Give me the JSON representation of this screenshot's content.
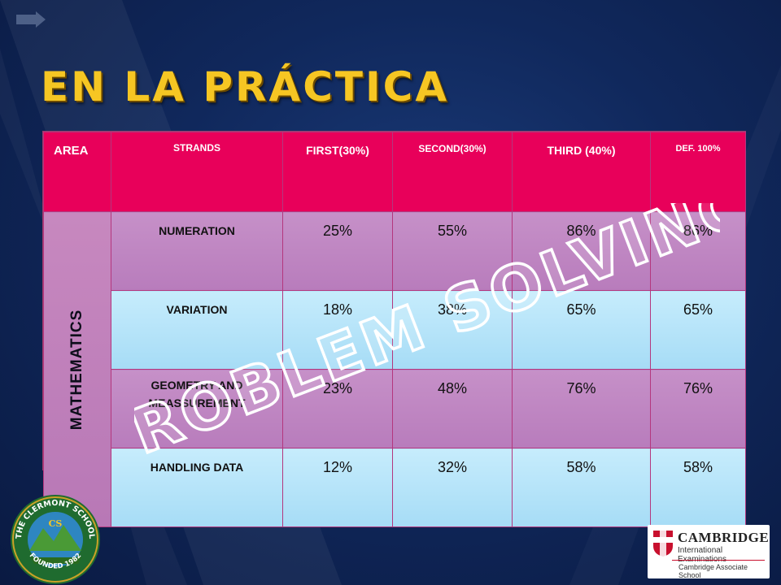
{
  "slide": {
    "title": "EN LA PRÁCTICA"
  },
  "table": {
    "headers": {
      "area": "AREA",
      "strands": "STRANDS",
      "first": "FIRST(30%)",
      "second": "SECOND(30%)",
      "third": "THIRD (40%)",
      "def": "DEF. 100%"
    },
    "area_label": "MATHEMATICS",
    "rows": [
      {
        "strand": "NUMERATION",
        "first": "25%",
        "second": "55%",
        "third": "86%",
        "def": "86%"
      },
      {
        "strand": "VARIATION",
        "first": "18%",
        "second": "38%",
        "third": "65%",
        "def": "65%"
      },
      {
        "strand": "GEOMETRY AND MEASSUREMENT",
        "first": "23%",
        "second": "48%",
        "third": "76%",
        "def": "76%"
      },
      {
        "strand": "HANDLING DATA",
        "first": "12%",
        "second": "32%",
        "third": "58%",
        "def": "58%"
      }
    ]
  },
  "watermark": {
    "text": "PROBLEM SOLVING"
  },
  "logos": {
    "school": {
      "name": "THE CLERMONT SCHOOL",
      "founded": "FOUNDED 1982",
      "initials": "CS"
    },
    "cambridge": {
      "name": "CAMBRIDGE",
      "subtitle": "International Examinations",
      "associate": "Cambridge Associate School"
    }
  },
  "colors": {
    "title": "#f6c623",
    "header": "#e8005a",
    "row_pink": "#bf85c0",
    "row_blue": "#b6e4fa",
    "watermark": "#ffffff"
  }
}
